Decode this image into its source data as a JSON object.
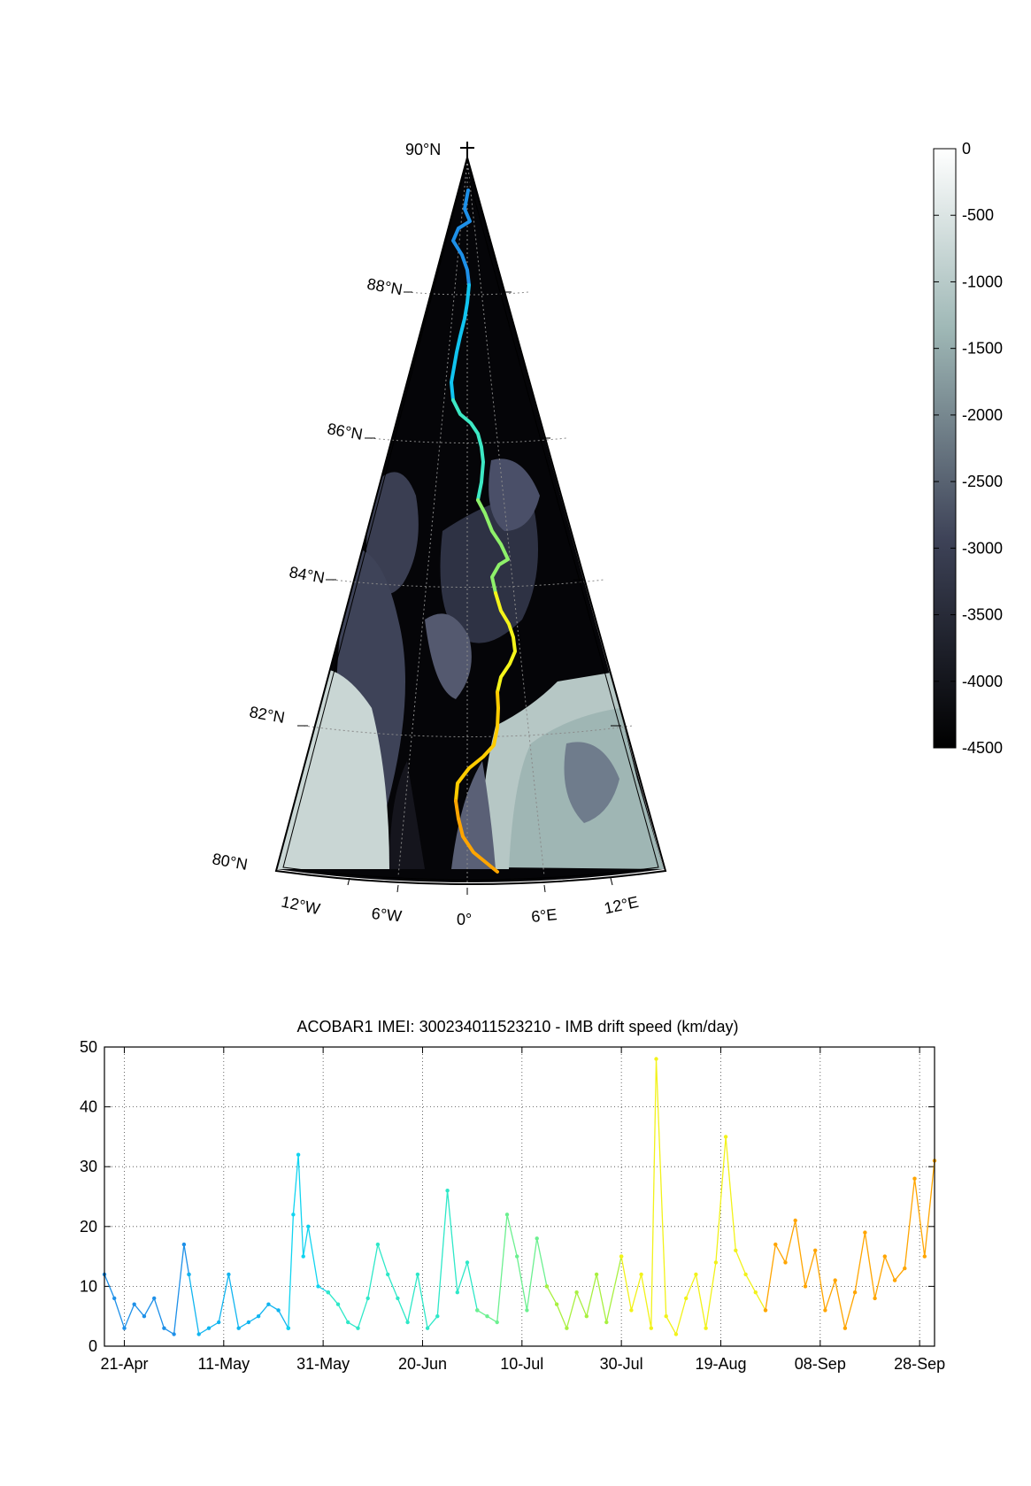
{
  "map": {
    "lat_labels": [
      "90°N",
      "88°N",
      "86°N",
      "84°N",
      "82°N",
      "80°N"
    ],
    "lon_labels": [
      "12°W",
      "6°W",
      "0°",
      "6°E",
      "12°E"
    ],
    "track_colors": [
      "#1e90e8",
      "#11c4f0",
      "#3de8c4",
      "#8ef06a",
      "#f4f41a",
      "#ffcc00",
      "#ffa500"
    ]
  },
  "colorbar": {
    "ticks": [
      "0",
      "-500",
      "-1000",
      "-1500",
      "-2000",
      "-2500",
      "-3000",
      "-3500",
      "-4000",
      "-4500"
    ],
    "range": [
      -4500,
      0
    ],
    "colors": {
      "top": "#ffffff",
      "mid": "#8fa8a8",
      "low": "#3e4358",
      "bottom": "#000000"
    }
  },
  "chart_data": {
    "type": "line",
    "title": "ACOBAR1 IMEI: 300234011523210 - IMB drift speed (km/day)",
    "xlabel": "",
    "ylabel": "",
    "ylim": [
      0,
      50
    ],
    "yticks": [
      0,
      10,
      20,
      30,
      40,
      50
    ],
    "xlim": [
      "2011-04-17",
      "2011-10-01"
    ],
    "xticks": [
      {
        "date": "2011-04-21",
        "label": "21-Apr"
      },
      {
        "date": "2011-05-11",
        "label": "11-May"
      },
      {
        "date": "2011-05-31",
        "label": "31-May"
      },
      {
        "date": "2011-06-20",
        "label": "20-Jun"
      },
      {
        "date": "2011-07-10",
        "label": "10-Jul"
      },
      {
        "date": "2011-07-30",
        "label": "30-Jul"
      },
      {
        "date": "2011-08-19",
        "label": "19-Aug"
      },
      {
        "date": "2011-09-08",
        "label": "08-Sep"
      },
      {
        "date": "2011-09-28",
        "label": "28-Sep"
      }
    ],
    "grid": true,
    "series": [
      {
        "color": "#1e90e8",
        "x": [
          "2011-04-17",
          "2011-04-19",
          "2011-04-21",
          "2011-04-23",
          "2011-04-25",
          "2011-04-27",
          "2011-04-29",
          "2011-05-01",
          "2011-05-03",
          "2011-05-04"
        ],
        "y": [
          12,
          8,
          3,
          7,
          5,
          8,
          3,
          2,
          17,
          12
        ]
      },
      {
        "color": "#11b5f0",
        "x": [
          "2011-05-04",
          "2011-05-06",
          "2011-05-08",
          "2011-05-10",
          "2011-05-12",
          "2011-05-14",
          "2011-05-16",
          "2011-05-18",
          "2011-05-20",
          "2011-05-22",
          "2011-05-24"
        ],
        "y": [
          12,
          2,
          3,
          4,
          12,
          3,
          4,
          5,
          7,
          6,
          3
        ]
      },
      {
        "color": "#11d4f0",
        "x": [
          "2011-05-24",
          "2011-05-25",
          "2011-05-26",
          "2011-05-27",
          "2011-05-28",
          "2011-05-30",
          "2011-06-01"
        ],
        "y": [
          3,
          22,
          32,
          15,
          20,
          10,
          9
        ]
      },
      {
        "color": "#2ee8c8",
        "x": [
          "2011-06-01",
          "2011-06-03",
          "2011-06-05",
          "2011-06-07",
          "2011-06-09",
          "2011-06-11",
          "2011-06-13",
          "2011-06-15",
          "2011-06-17",
          "2011-06-19",
          "2011-06-21",
          "2011-06-23",
          "2011-06-25",
          "2011-06-27",
          "2011-06-29",
          "2011-07-01"
        ],
        "y": [
          9,
          7,
          4,
          3,
          8,
          17,
          12,
          8,
          4,
          12,
          3,
          5,
          26,
          9,
          14,
          6
        ]
      },
      {
        "color": "#6cf090",
        "x": [
          "2011-07-01",
          "2011-07-03",
          "2011-07-05",
          "2011-07-07",
          "2011-07-09",
          "2011-07-11",
          "2011-07-13",
          "2011-07-15"
        ],
        "y": [
          6,
          5,
          4,
          22,
          15,
          6,
          18,
          10
        ]
      },
      {
        "color": "#a8f040",
        "x": [
          "2011-07-15",
          "2011-07-17",
          "2011-07-19",
          "2011-07-21",
          "2011-07-23",
          "2011-07-25",
          "2011-07-27",
          "2011-07-30"
        ],
        "y": [
          10,
          7,
          3,
          9,
          5,
          12,
          4,
          15
        ]
      },
      {
        "color": "#f2f21a",
        "x": [
          "2011-07-30",
          "2011-08-01",
          "2011-08-03",
          "2011-08-05",
          "2011-08-06",
          "2011-08-08",
          "2011-08-10",
          "2011-08-12",
          "2011-08-14",
          "2011-08-16",
          "2011-08-18",
          "2011-08-20",
          "2011-08-22",
          "2011-08-24",
          "2011-08-26",
          "2011-08-28"
        ],
        "y": [
          15,
          6,
          12,
          3,
          48,
          5,
          2,
          8,
          12,
          3,
          14,
          35,
          16,
          12,
          9,
          6
        ]
      },
      {
        "color": "#ffa500",
        "x": [
          "2011-08-28",
          "2011-08-30",
          "2011-09-01",
          "2011-09-03",
          "2011-09-05",
          "2011-09-07",
          "2011-09-09",
          "2011-09-11",
          "2011-09-13",
          "2011-09-15",
          "2011-09-17",
          "2011-09-19",
          "2011-09-21",
          "2011-09-23",
          "2011-09-25",
          "2011-09-27",
          "2011-09-29",
          "2011-10-01"
        ],
        "y": [
          6,
          17,
          14,
          21,
          10,
          16,
          6,
          11,
          3,
          9,
          19,
          8,
          15,
          11,
          13,
          28,
          15,
          31
        ]
      }
    ]
  }
}
